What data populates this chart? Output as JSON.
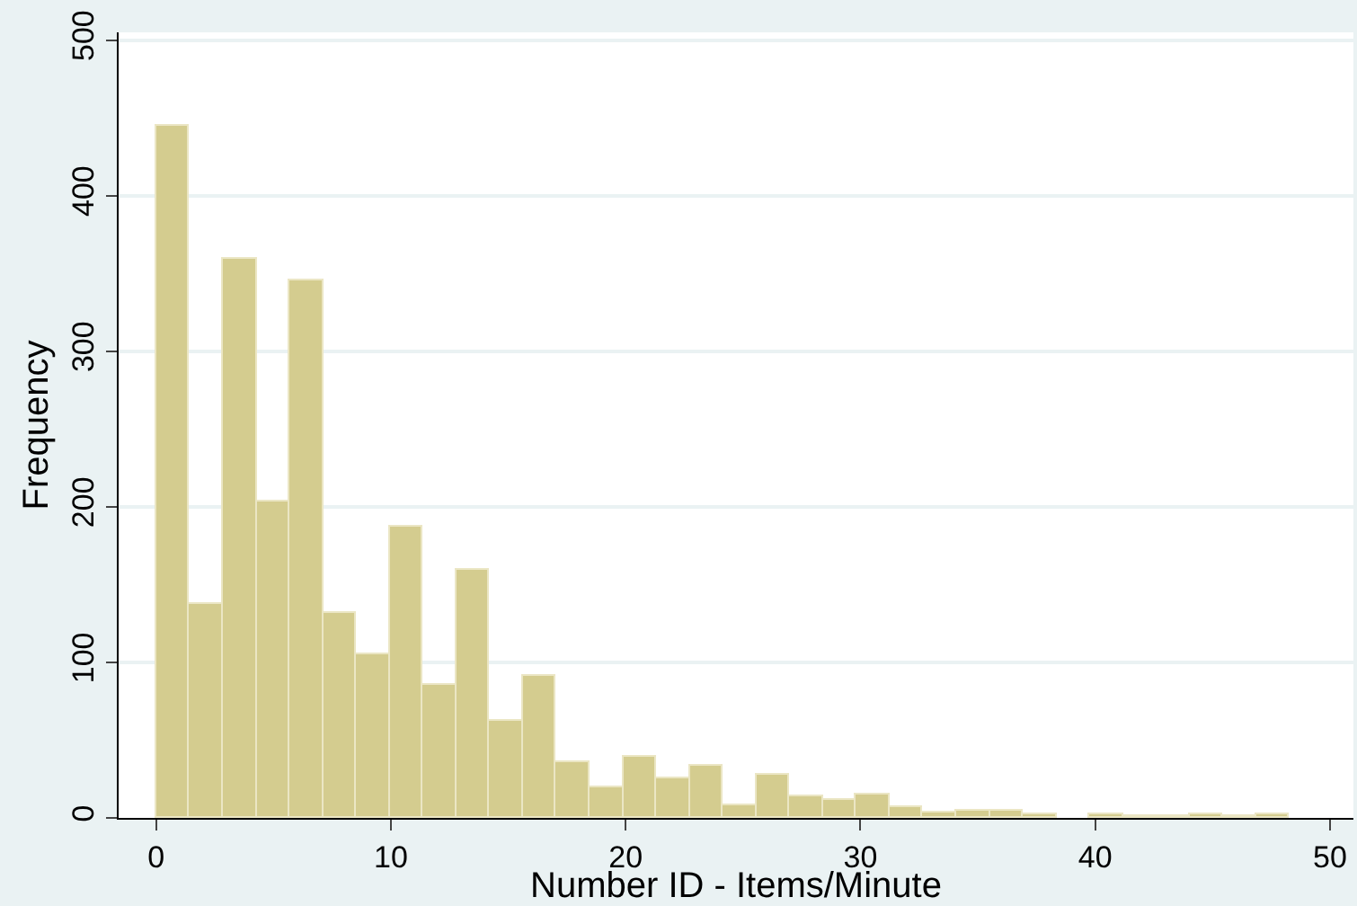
{
  "chart_data": {
    "type": "histogram",
    "xlabel": "Number ID - Items/Minute",
    "ylabel": "Frequency",
    "bins": [
      0,
      1.42,
      2.84,
      4.26,
      5.68,
      7.1,
      8.52,
      9.94,
      11.36,
      12.78,
      14.2,
      15.62,
      17.04,
      18.46,
      19.88,
      21.3,
      22.72,
      24.14,
      25.56,
      26.98,
      28.4,
      29.82,
      31.24,
      32.66,
      34.08,
      35.5,
      36.92,
      38.34,
      39.76,
      41.18,
      42.6,
      44.02,
      45.44,
      46.86,
      48.28
    ],
    "values": [
      445,
      138,
      359,
      203,
      346,
      132,
      105,
      187,
      86,
      160,
      62,
      91,
      36,
      20,
      39,
      26,
      34,
      8,
      28,
      14,
      11,
      15,
      7,
      3,
      5,
      5,
      2,
      0,
      2,
      1,
      1,
      2,
      1,
      2
    ],
    "color": "#d4cc8f",
    "xlim": [
      -1.6,
      51
    ],
    "xticks": [
      0,
      10,
      20,
      30,
      40,
      50
    ],
    "ylim": [
      0,
      505
    ],
    "yticks": [
      0,
      100,
      200,
      300,
      400,
      500
    ],
    "grid": "y"
  }
}
